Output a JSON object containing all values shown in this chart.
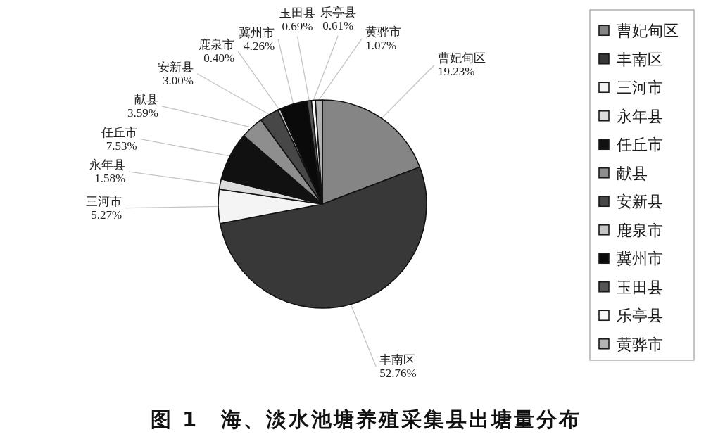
{
  "chart_data": {
    "type": "pie",
    "title": "图 1　海、淡水池塘养殖采集县出塘量分布",
    "categories": [
      "曹妃甸区",
      "丰南区",
      "三河市",
      "永年县",
      "任丘市",
      "献县",
      "安新县",
      "鹿泉市",
      "冀州市",
      "玉田县",
      "乐亭县",
      "黄骅市"
    ],
    "values": [
      19.23,
      52.76,
      5.27,
      1.58,
      7.53,
      3.59,
      3.0,
      0.4,
      4.26,
      0.69,
      0.61,
      1.07
    ],
    "value_labels": [
      "19.23%",
      "52.76%",
      "5.27%",
      "1.58%",
      "7.53%",
      "3.59%",
      "3.00%",
      "0.40%",
      "4.26%",
      "0.69%",
      "0.61%",
      "1.07%"
    ],
    "colors": [
      "#858585",
      "#383838",
      "#f4f4f4",
      "#dcdcdc",
      "#111111",
      "#8e8e8e",
      "#474747",
      "#c4c4c4",
      "#0a0a0a",
      "#555555",
      "#fafafa",
      "#b2b2b2"
    ],
    "legend": "right"
  }
}
